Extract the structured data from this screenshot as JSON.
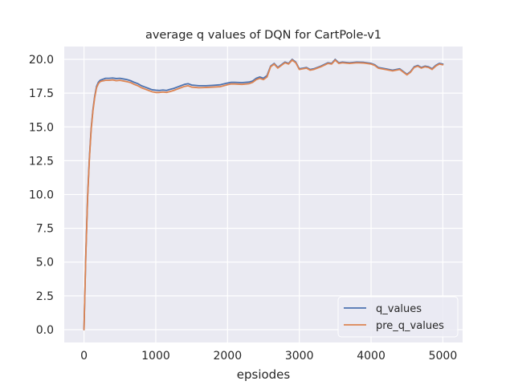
{
  "chart_data": {
    "type": "line",
    "title": "average q values of DQN for CartPole-v1",
    "xlabel": "epsiodes",
    "ylabel": "",
    "xlim": [
      -275,
      5275
    ],
    "ylim": [
      -0.95,
      20.95
    ],
    "xticks": [
      0,
      1000,
      2000,
      3000,
      4000,
      5000
    ],
    "xtick_labels": [
      "0",
      "1000",
      "2000",
      "3000",
      "4000",
      "5000"
    ],
    "yticks": [
      0,
      2.5,
      5,
      7.5,
      10,
      12.5,
      15,
      17.5,
      20
    ],
    "ytick_labels": [
      "0.0",
      "2.5",
      "5.0",
      "7.5",
      "10.0",
      "12.5",
      "15.0",
      "17.5",
      "20.0"
    ],
    "grid": true,
    "legend_position": "lower-right",
    "colors": {
      "background": "#eaeaf2",
      "grid": "#ffffff",
      "q_values": "#4c72b0",
      "pre_q_values": "#dd8452"
    },
    "series": [
      {
        "name": "q_values",
        "color": "#4c72b0",
        "x": [
          0,
          25,
          50,
          75,
          100,
          125,
          150,
          175,
          200,
          225,
          250,
          275,
          300,
          350,
          400,
          450,
          500,
          550,
          600,
          650,
          700,
          750,
          800,
          850,
          900,
          950,
          1000,
          1050,
          1100,
          1150,
          1200,
          1250,
          1300,
          1350,
          1400,
          1450,
          1500,
          1600,
          1700,
          1800,
          1900,
          2000,
          2050,
          2100,
          2200,
          2300,
          2350,
          2400,
          2450,
          2500,
          2550,
          2600,
          2650,
          2700,
          2750,
          2800,
          2850,
          2900,
          2950,
          3000,
          3050,
          3100,
          3150,
          3200,
          3300,
          3400,
          3450,
          3500,
          3550,
          3600,
          3700,
          3800,
          3900,
          4000,
          4050,
          4100,
          4200,
          4300,
          4400,
          4450,
          4500,
          4550,
          4600,
          4650,
          4700,
          4750,
          4800,
          4850,
          4900,
          4950,
          5000
        ],
        "y": [
          0.0,
          5.5,
          9.8,
          12.7,
          14.9,
          16.3,
          17.3,
          18.0,
          18.3,
          18.45,
          18.5,
          18.55,
          18.6,
          18.6,
          18.62,
          18.58,
          18.6,
          18.55,
          18.5,
          18.42,
          18.3,
          18.2,
          18.05,
          17.95,
          17.85,
          17.75,
          17.72,
          17.7,
          17.73,
          17.7,
          17.78,
          17.85,
          17.95,
          18.05,
          18.15,
          18.2,
          18.1,
          18.05,
          18.05,
          18.08,
          18.12,
          18.25,
          18.3,
          18.3,
          18.28,
          18.32,
          18.4,
          18.6,
          18.7,
          18.6,
          18.8,
          19.5,
          19.7,
          19.4,
          19.6,
          19.8,
          19.7,
          20.0,
          19.8,
          19.3,
          19.35,
          19.4,
          19.25,
          19.3,
          19.5,
          19.75,
          19.7,
          20.0,
          19.75,
          19.8,
          19.75,
          19.8,
          19.78,
          19.7,
          19.6,
          19.4,
          19.3,
          19.2,
          19.3,
          19.1,
          18.9,
          19.1,
          19.45,
          19.55,
          19.4,
          19.5,
          19.45,
          19.3,
          19.55,
          19.7,
          19.65
        ]
      },
      {
        "name": "pre_q_values",
        "color": "#dd8452",
        "x": [
          0,
          25,
          50,
          75,
          100,
          125,
          150,
          175,
          200,
          225,
          250,
          275,
          300,
          350,
          400,
          450,
          500,
          550,
          600,
          650,
          700,
          750,
          800,
          850,
          900,
          950,
          1000,
          1050,
          1100,
          1150,
          1200,
          1250,
          1300,
          1350,
          1400,
          1450,
          1500,
          1600,
          1700,
          1800,
          1900,
          2000,
          2050,
          2100,
          2200,
          2300,
          2350,
          2400,
          2450,
          2500,
          2550,
          2600,
          2650,
          2700,
          2750,
          2800,
          2850,
          2900,
          2950,
          3000,
          3050,
          3100,
          3150,
          3200,
          3300,
          3400,
          3450,
          3500,
          3550,
          3600,
          3700,
          3800,
          3900,
          4000,
          4050,
          4100,
          4200,
          4300,
          4400,
          4450,
          4500,
          4550,
          4600,
          4650,
          4700,
          4750,
          4800,
          4850,
          4900,
          4950,
          5000
        ],
        "y": [
          0.0,
          5.4,
          9.7,
          12.6,
          14.8,
          16.2,
          17.2,
          17.9,
          18.2,
          18.35,
          18.4,
          18.42,
          18.45,
          18.45,
          18.48,
          18.42,
          18.45,
          18.4,
          18.35,
          18.28,
          18.15,
          18.05,
          17.9,
          17.8,
          17.7,
          17.6,
          17.55,
          17.55,
          17.58,
          17.55,
          17.62,
          17.7,
          17.8,
          17.9,
          18.0,
          18.05,
          17.95,
          17.9,
          17.92,
          17.95,
          17.98,
          18.12,
          18.18,
          18.18,
          18.15,
          18.2,
          18.3,
          18.5,
          18.6,
          18.5,
          18.7,
          19.45,
          19.65,
          19.35,
          19.55,
          19.75,
          19.65,
          19.95,
          19.75,
          19.25,
          19.3,
          19.35,
          19.2,
          19.25,
          19.45,
          19.7,
          19.65,
          19.95,
          19.7,
          19.75,
          19.7,
          19.75,
          19.73,
          19.65,
          19.55,
          19.35,
          19.25,
          19.15,
          19.25,
          19.05,
          18.85,
          19.05,
          19.4,
          19.5,
          19.35,
          19.45,
          19.4,
          19.25,
          19.5,
          19.65,
          19.6
        ]
      }
    ]
  }
}
